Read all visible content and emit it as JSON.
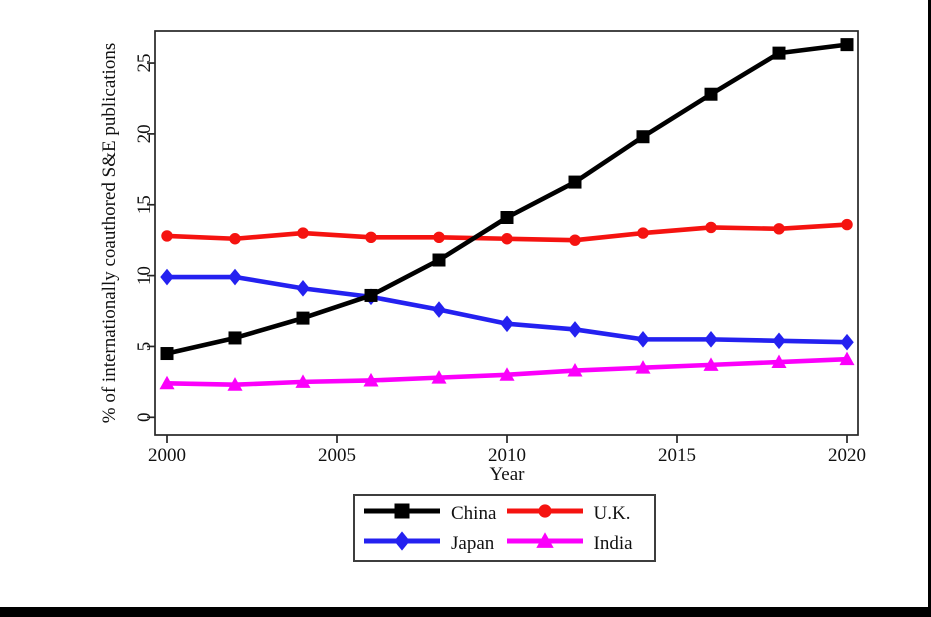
{
  "chart_data": {
    "type": "line",
    "title": "",
    "xlabel": "Year",
    "ylabel": "% of internationally coauthored S&E publications",
    "x": [
      2000,
      2002,
      2004,
      2006,
      2008,
      2010,
      2012,
      2014,
      2016,
      2018,
      2020
    ],
    "x_ticks": [
      2000,
      2005,
      2010,
      2015,
      2020
    ],
    "y_ticks": [
      0,
      5,
      10,
      15,
      20,
      25
    ],
    "xlim": [
      1999.6,
      2020.3
    ],
    "ylim": [
      -1.3,
      27.3
    ],
    "grid": false,
    "legend_position": "bottom-center-outside",
    "series": [
      {
        "name": "China",
        "color": "#000000",
        "marker": "square",
        "values": [
          4.5,
          5.6,
          7.0,
          8.6,
          11.1,
          14.1,
          16.6,
          19.8,
          22.8,
          25.7,
          26.3
        ]
      },
      {
        "name": "U.K.",
        "color": "#f51310",
        "marker": "circle",
        "values": [
          12.8,
          12.6,
          13.0,
          12.7,
          12.7,
          12.6,
          12.5,
          13.0,
          13.4,
          13.3,
          13.6
        ]
      },
      {
        "name": "Japan",
        "color": "#2421f0",
        "marker": "diamond",
        "values": [
          9.9,
          9.9,
          9.1,
          8.5,
          7.6,
          6.6,
          6.2,
          5.5,
          5.5,
          5.4,
          5.3
        ]
      },
      {
        "name": "India",
        "color": "#fb00fb",
        "marker": "triangle",
        "values": [
          2.4,
          2.3,
          2.5,
          2.6,
          2.8,
          3.0,
          3.3,
          3.5,
          3.7,
          3.9,
          4.1
        ]
      }
    ]
  }
}
